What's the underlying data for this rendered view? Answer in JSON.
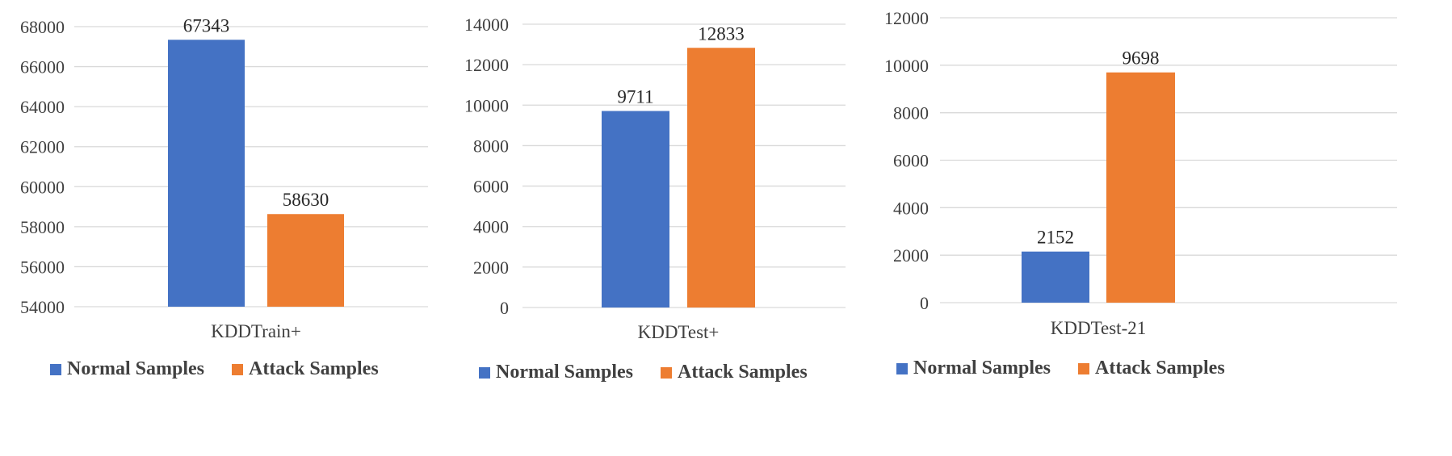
{
  "colors": {
    "normal": "#4472c4",
    "attack": "#ed7d31",
    "grid": "#d9d9d9",
    "text": "#404040"
  },
  "chart_data": [
    {
      "type": "bar",
      "categories": [
        "KDDTrain+"
      ],
      "series": [
        {
          "name": "Normal Samples",
          "values": [
            67343
          ]
        },
        {
          "name": "Attack Samples",
          "values": [
            58630
          ]
        }
      ],
      "ylim": [
        54000,
        68000
      ],
      "yticks": [
        54000,
        56000,
        58000,
        60000,
        62000,
        64000,
        66000,
        68000
      ],
      "grid": true,
      "legend": "bottom"
    },
    {
      "type": "bar",
      "categories": [
        "KDDTest+"
      ],
      "series": [
        {
          "name": "Normal Samples",
          "values": [
            9711
          ]
        },
        {
          "name": "Attack Samples",
          "values": [
            12833
          ]
        }
      ],
      "ylim": [
        0,
        14000
      ],
      "yticks": [
        0,
        2000,
        4000,
        6000,
        8000,
        10000,
        12000,
        14000
      ],
      "grid": true,
      "legend": "bottom"
    },
    {
      "type": "bar",
      "categories": [
        "KDDTest-21"
      ],
      "series": [
        {
          "name": "Normal Samples",
          "values": [
            2152
          ]
        },
        {
          "name": "Attack Samples",
          "values": [
            9698
          ]
        }
      ],
      "ylim": [
        0,
        12000
      ],
      "yticks": [
        0,
        2000,
        4000,
        6000,
        8000,
        10000,
        12000
      ],
      "grid": true,
      "legend": "bottom"
    }
  ]
}
